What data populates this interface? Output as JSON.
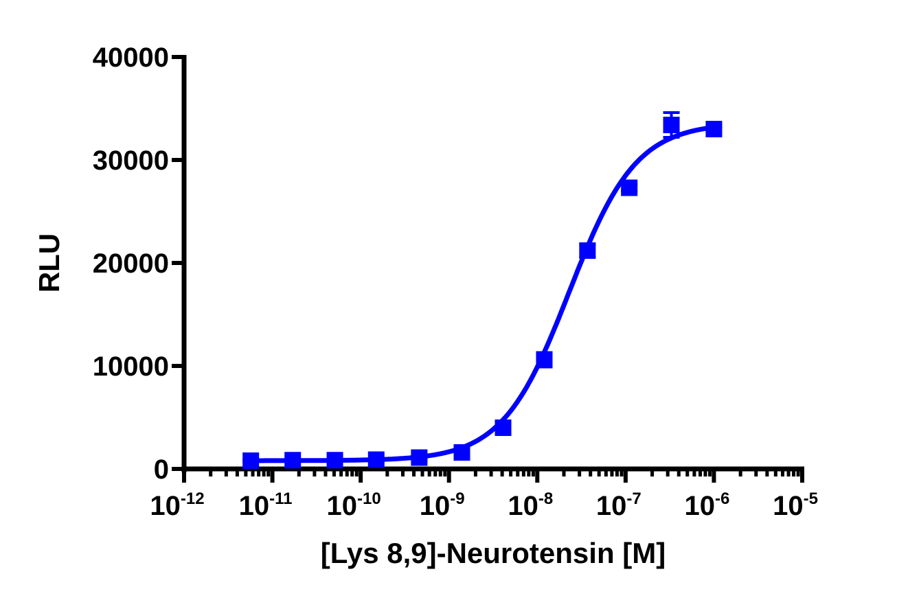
{
  "chart_data": {
    "type": "scatter",
    "title": "",
    "xlabel": "[Lys 8,9]-Neurotensin [M]",
    "ylabel": "RLU",
    "xscale": "log",
    "xlim": [
      1e-12,
      1e-05
    ],
    "ylim": [
      0,
      40000
    ],
    "x_tick_labels": [
      {
        "base": "10",
        "exp": "-12"
      },
      {
        "base": "10",
        "exp": "-11"
      },
      {
        "base": "10",
        "exp": "-10"
      },
      {
        "base": "10",
        "exp": "-9"
      },
      {
        "base": "10",
        "exp": "-8"
      },
      {
        "base": "10",
        "exp": "-7"
      },
      {
        "base": "10",
        "exp": "-6"
      },
      {
        "base": "10",
        "exp": "-5"
      }
    ],
    "y_tick_labels": [
      "0",
      "10000",
      "20000",
      "30000",
      "40000"
    ],
    "grid": false,
    "legend": null,
    "series": [
      {
        "name": "[Lys 8,9]-Neurotensin",
        "color": "#0000ff",
        "marker": "square",
        "fit": "sigmoidal dose-response curve",
        "x": [
          5.7e-12,
          1.7e-11,
          5.1e-11,
          1.5e-10,
          4.6e-10,
          1.4e-09,
          4.1e-09,
          1.2e-08,
          3.7e-08,
          1.1e-07,
          3.3e-07,
          1e-06
        ],
        "y": [
          800,
          850,
          850,
          900,
          1100,
          1600,
          4000,
          10600,
          21200,
          27300,
          33400,
          33000
        ],
        "error": [
          100,
          100,
          100,
          100,
          150,
          200,
          300,
          700,
          600,
          300,
          1200,
          200
        ]
      }
    ]
  }
}
